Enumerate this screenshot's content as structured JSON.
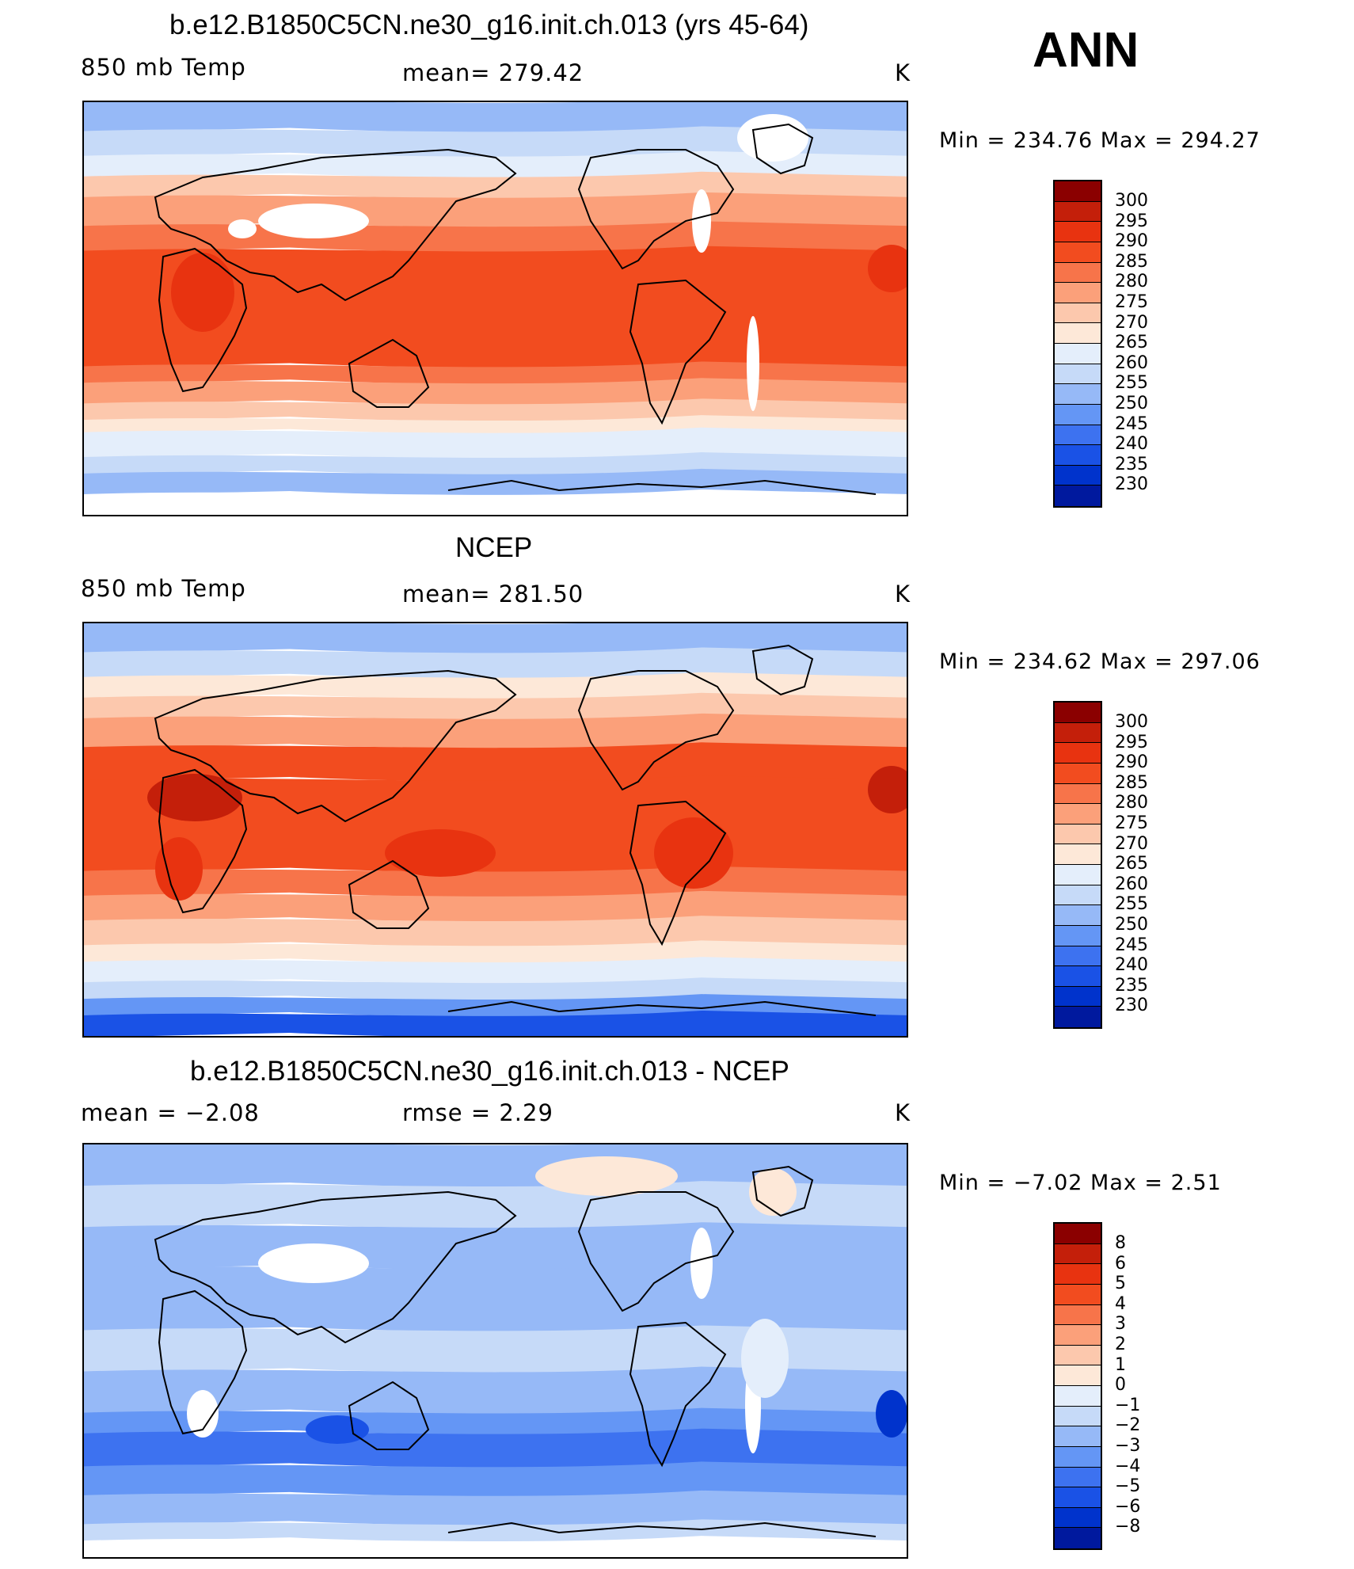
{
  "header": {
    "season": "ANN"
  },
  "colors": {
    "temp": [
      "#000080",
      "#00199e",
      "#0033cc",
      "#1a52e6",
      "#3d72f0",
      "#6496f5",
      "#96b9f7",
      "#c6daf8",
      "#e4eefb",
      "#fde8d8",
      "#fcc8ad",
      "#fba07a",
      "#f7744a",
      "#f24c1f",
      "#e83310",
      "#c41f0a",
      "#8b0000"
    ],
    "diff": [
      "#000080",
      "#00199e",
      "#0033cc",
      "#1a52e6",
      "#3d72f0",
      "#6496f5",
      "#96b9f7",
      "#c6daf8",
      "#e4eefb",
      "#fde8d8",
      "#fcc8ad",
      "#fba07a",
      "#f7744a",
      "#f24c1f",
      "#e83310",
      "#c41f0a",
      "#8b0000"
    ]
  },
  "panels": [
    {
      "id": "model",
      "title": "b.e12.B1850C5CN.ne30_g16.init.ch.013 (yrs 45-64)",
      "left_label": "850 mb Temp",
      "center_label": "mean=  279.42",
      "units": "K",
      "minmax": "Min  =  234.76  Max  =  294.27",
      "levels": [
        "300",
        "295",
        "290",
        "285",
        "280",
        "275",
        "270",
        "265",
        "260",
        "255",
        "250",
        "245",
        "240",
        "235",
        "230"
      ]
    },
    {
      "id": "obs",
      "title": "NCEP",
      "left_label": "850 mb Temp",
      "center_label": "mean=  281.50",
      "units": "K",
      "minmax": "Min  =  234.62  Max  =  297.06",
      "levels": [
        "300",
        "295",
        "290",
        "285",
        "280",
        "275",
        "270",
        "265",
        "260",
        "255",
        "250",
        "245",
        "240",
        "235",
        "230"
      ]
    },
    {
      "id": "diff",
      "title": "b.e12.B1850C5CN.ne30_g16.init.ch.013 - NCEP",
      "left_label": "mean  =    −2.08",
      "center_label": "rmse  =     2.29",
      "units": "K",
      "minmax": "Min  =    −7.02  Max  =      2.51",
      "levels": [
        "8",
        "6",
        "5",
        "4",
        "3",
        "2",
        "1",
        "0",
        "−1",
        "−2",
        "−3",
        "−4",
        "−5",
        "−6",
        "−8"
      ]
    }
  ]
}
